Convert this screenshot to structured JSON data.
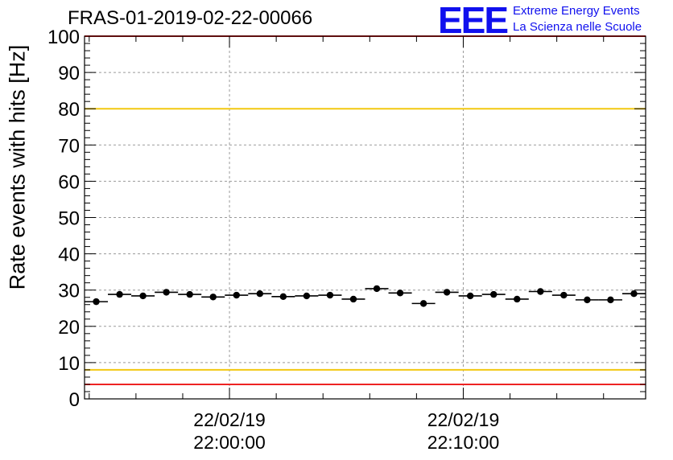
{
  "header": {
    "title": "FRAS-01-2019-02-22-00066",
    "logo_letters": "EEE",
    "logo_line1": "Extreme Energy Events",
    "logo_line2": "La Scienza nelle Scuole"
  },
  "colors": {
    "frame": "#000000",
    "grid": "#9a9a9a",
    "markers": "#000000",
    "red_threshold": "#ee2222",
    "yellow_threshold": "#f2c811",
    "logo": "#1010ee"
  },
  "chart_data": {
    "type": "scatter",
    "title": "FRAS-01-2019-02-22-00066",
    "xlabel": "",
    "ylabel": "Rate events with hits [Hz]",
    "ylim": [
      0,
      100
    ],
    "y_ticks": [
      0,
      10,
      20,
      30,
      40,
      50,
      60,
      70,
      80,
      90,
      100
    ],
    "xlim_minutes": [
      -6.2,
      17.8
    ],
    "x_tick_labels": [
      {
        "minute": 0,
        "date": "22/02/19",
        "time": "22:00:00"
      },
      {
        "minute": 10,
        "date": "22/02/19",
        "time": "22:10:00"
      }
    ],
    "grid": true,
    "bin_width_minutes": 1,
    "series": [
      {
        "name": "Rate events with hits",
        "x_minutes": [
          -5.7,
          -4.7,
          -3.7,
          -2.7,
          -1.7,
          -0.7,
          0.3,
          1.3,
          2.3,
          3.3,
          4.3,
          5.3,
          6.3,
          7.3,
          8.3,
          9.3,
          10.3,
          11.3,
          12.3,
          13.3,
          14.3,
          15.3,
          16.3,
          17.3
        ],
        "values": [
          26.8,
          28.8,
          28.4,
          29.4,
          28.8,
          28.1,
          28.6,
          29.0,
          28.2,
          28.4,
          28.6,
          27.5,
          30.4,
          29.2,
          26.3,
          29.4,
          28.4,
          28.8,
          27.5,
          29.6,
          28.6,
          27.3,
          27.3,
          29.0
        ]
      }
    ],
    "reference_lines": [
      {
        "name": "upper red limit",
        "value": 100,
        "color": "#ee2222"
      },
      {
        "name": "upper yellow limit",
        "value": 80,
        "color": "#f2c811"
      },
      {
        "name": "lower yellow limit",
        "value": 8,
        "color": "#f2c811"
      },
      {
        "name": "lower red limit",
        "value": 4,
        "color": "#ee2222"
      }
    ]
  }
}
